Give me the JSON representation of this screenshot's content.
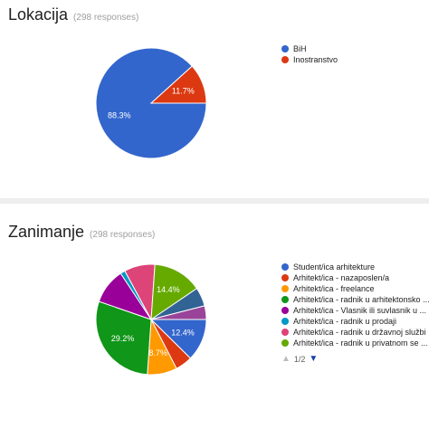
{
  "charts": [
    {
      "title": "Lokacija",
      "responses": "(298 responses)",
      "legend_page": "",
      "chart_data": {
        "type": "pie",
        "title": "Lokacija",
        "categories": [
          "BiH",
          "Inostranstvo"
        ],
        "values": [
          88.3,
          11.7
        ],
        "data_labels": [
          "88.3%",
          "11.7%"
        ],
        "colors": [
          "#3366cc",
          "#dc3912"
        ],
        "legend_position": "right"
      }
    },
    {
      "title": "Zanimanje",
      "responses": "(298 responses)",
      "legend_page": "1/2",
      "chart_data": {
        "type": "pie",
        "title": "Zanimanje",
        "categories": [
          "Student/ica arhitekture",
          "Arhitekt/ica - nazaposlen/a",
          "Arhitekt/ica - freelance",
          "Arhitekt/ica - radnik u arhitektonsko ...",
          "Arhitekt/ica - Vlasnik ili suvlasnik u ...",
          "Arhitekt/ica - radnik u prodaji",
          "Arhitekt/ica - radnik u državnoj službi",
          "Arhitekt/ica - radnik u privatnom se ...",
          "",
          ""
        ],
        "values": [
          12.4,
          5.0,
          8.7,
          29.2,
          10.4,
          1.4,
          9.0,
          14.4,
          5.5,
          4.0
        ],
        "data_labels": [
          "12.4%",
          "",
          "8.7%",
          "29.2%",
          "",
          "",
          "",
          "14.4%",
          "",
          ""
        ],
        "colors": [
          "#3366cc",
          "#dc3912",
          "#ff9900",
          "#109618",
          "#990099",
          "#0099c6",
          "#dd4477",
          "#66aa00",
          "#316395",
          "#994499"
        ],
        "legend_visible_count": 8,
        "legend_position": "right"
      }
    }
  ]
}
